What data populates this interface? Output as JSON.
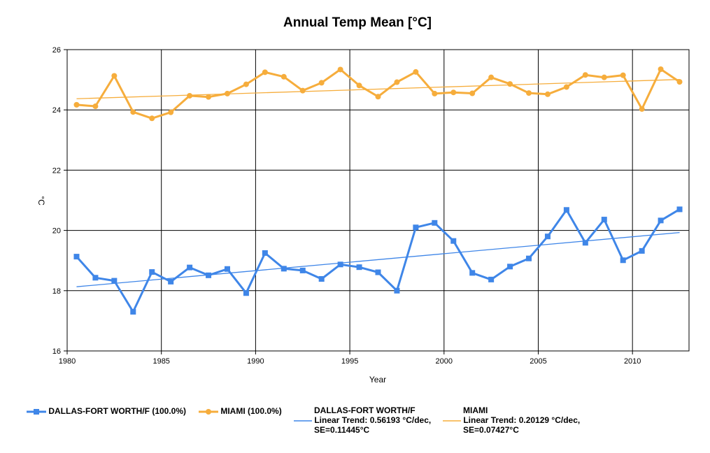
{
  "chart_data": {
    "type": "line",
    "title": "Annual Temp Mean [°C]",
    "xlabel": "Year",
    "ylabel": "°C",
    "xlim": [
      1980,
      2013
    ],
    "ylim": [
      16,
      26
    ],
    "xticks": [
      1980,
      1985,
      1990,
      1995,
      2000,
      2005,
      2010
    ],
    "yticks": [
      16,
      18,
      20,
      22,
      24,
      26
    ],
    "grid": true,
    "legend_position": "bottom",
    "series": [
      {
        "name": "DALLAS-FORT WORTH/F (100.0%)",
        "color": "#3f86e8",
        "marker": "square",
        "x": [
          1980.5,
          1981.5,
          1982.5,
          1983.5,
          1984.5,
          1985.5,
          1986.5,
          1987.5,
          1988.5,
          1989.5,
          1990.5,
          1991.5,
          1992.5,
          1993.5,
          1994.5,
          1995.5,
          1996.5,
          1997.5,
          1998.5,
          1999.5,
          2000.5,
          2001.5,
          2002.5,
          2003.5,
          2004.5,
          2005.5,
          2006.5,
          2007.5,
          2008.5,
          2009.5,
          2010.5,
          2011.5,
          2012.5
        ],
        "y": [
          19.13,
          18.43,
          18.33,
          17.3,
          18.62,
          18.3,
          18.77,
          18.51,
          18.72,
          17.92,
          19.25,
          18.73,
          18.67,
          18.39,
          18.87,
          18.78,
          18.61,
          18.0,
          20.1,
          20.25,
          19.65,
          18.59,
          18.37,
          18.8,
          19.07,
          19.8,
          20.68,
          19.59,
          20.36,
          19.01,
          19.32,
          20.33,
          20.7
        ]
      },
      {
        "name": "MIAMI (100.0%)",
        "color": "#f6ad3c",
        "marker": "circle",
        "x": [
          1980.5,
          1981.5,
          1982.5,
          1983.5,
          1984.5,
          1985.5,
          1986.5,
          1987.5,
          1988.5,
          1989.5,
          1990.5,
          1991.5,
          1992.5,
          1993.5,
          1994.5,
          1995.5,
          1996.5,
          1997.5,
          1998.5,
          1999.5,
          2000.5,
          2001.5,
          2002.5,
          2003.5,
          2004.5,
          2005.5,
          2006.5,
          2007.5,
          2008.5,
          2009.5,
          2010.5,
          2011.5,
          2012.5
        ],
        "y": [
          24.17,
          24.12,
          25.13,
          23.93,
          23.72,
          23.92,
          24.47,
          24.43,
          24.54,
          24.85,
          25.25,
          25.1,
          24.64,
          24.9,
          25.34,
          24.81,
          24.44,
          24.92,
          25.26,
          24.54,
          24.58,
          24.55,
          25.08,
          24.86,
          24.56,
          24.52,
          24.76,
          25.16,
          25.08,
          25.15,
          24.03,
          25.35,
          24.93
        ]
      }
    ],
    "trendlines": [
      {
        "series": "DALLAS-FORT WORTH/F",
        "color": "#3f86e8",
        "x": [
          1980.5,
          2012.5
        ],
        "y": [
          18.13,
          19.93
        ]
      },
      {
        "series": "MIAMI",
        "color": "#f6ad3c",
        "x": [
          1980.5,
          2012.5
        ],
        "y": [
          24.37,
          25.01
        ]
      }
    ]
  },
  "legend": {
    "series": [
      {
        "label": "DALLAS-FORT WORTH/F (100.0%)",
        "color": "#3f86e8",
        "marker": "square"
      },
      {
        "label": "MIAMI (100.0%)",
        "color": "#f6ad3c",
        "marker": "circle"
      }
    ],
    "trends": [
      {
        "name": "DALLAS-FORT WORTH/F",
        "line1": "Linear Trend: 0.56193 °C/dec,",
        "line2": "SE=0.11445°C",
        "color": "#3f86e8"
      },
      {
        "name": "MIAMI",
        "line1": "Linear Trend: 0.20129 °C/dec,",
        "line2": "SE=0.07427°C",
        "color": "#f6ad3c"
      }
    ]
  }
}
